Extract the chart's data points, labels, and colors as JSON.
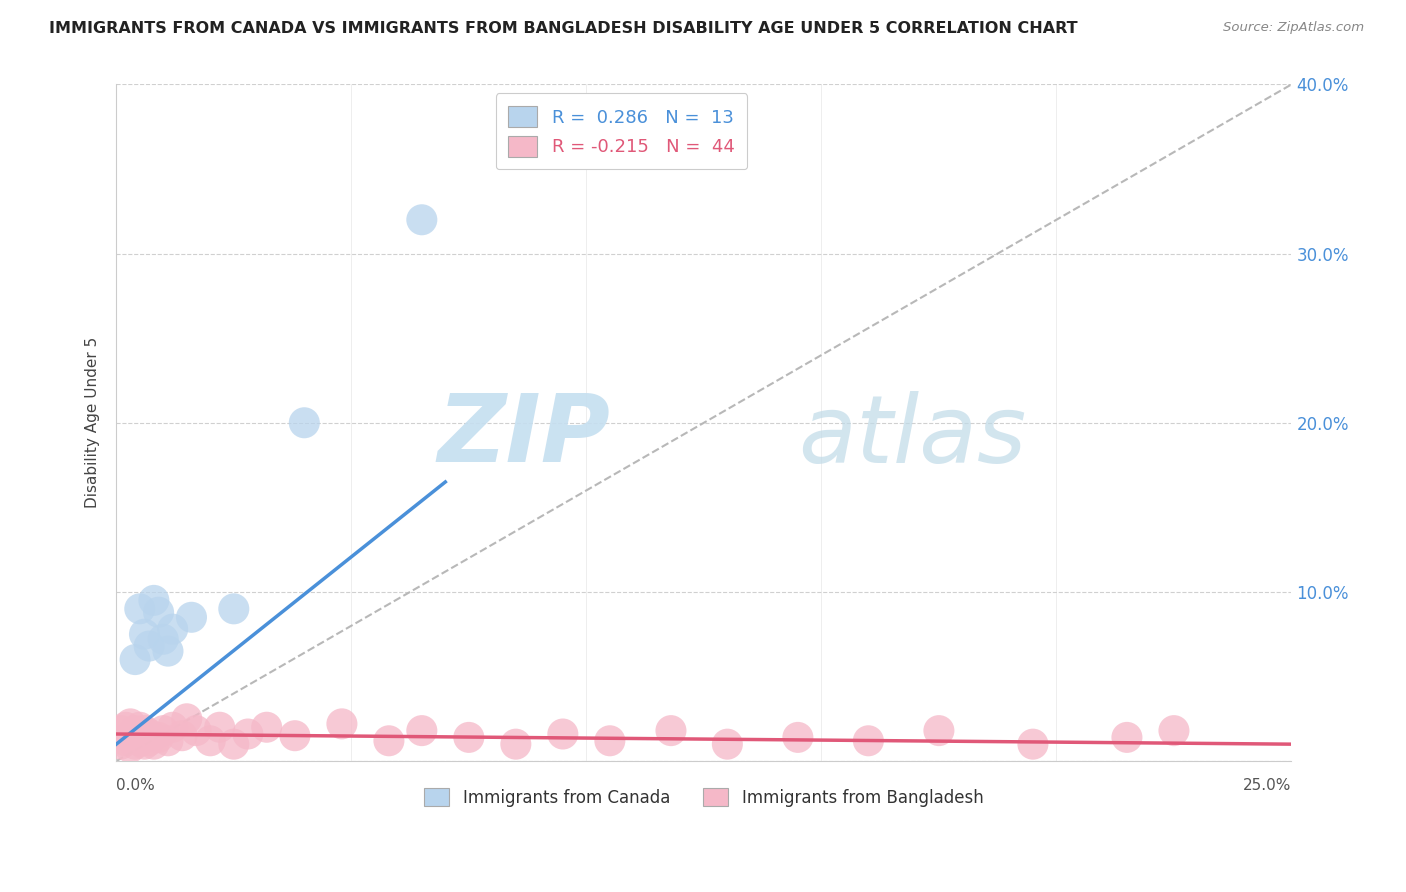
{
  "title": "IMMIGRANTS FROM CANADA VS IMMIGRANTS FROM BANGLADESH DISABILITY AGE UNDER 5 CORRELATION CHART",
  "source": "Source: ZipAtlas.com",
  "ylabel": "Disability Age Under 5",
  "xlim": [
    0.0,
    0.25
  ],
  "ylim": [
    0.0,
    0.4
  ],
  "yticks": [
    0.0,
    0.1,
    0.2,
    0.3,
    0.4
  ],
  "ytick_labels": [
    "",
    "10.0%",
    "20.0%",
    "30.0%",
    "40.0%"
  ],
  "xtick_vals": [
    0.0,
    0.05,
    0.1,
    0.15,
    0.2,
    0.25
  ],
  "r_canada": "0.286",
  "n_canada": "13",
  "r_bangladesh": "-0.215",
  "n_bangladesh": "44",
  "canada_color": "#b8d4ed",
  "canada_line_color": "#4a90d9",
  "bangladesh_color": "#f5b8c8",
  "bangladesh_line_color": "#e05878",
  "dashed_line_color": "#b8b8b8",
  "watermark_zip_color": "#c5dff0",
  "watermark_atlas_color": "#c0dae8",
  "canada_x": [
    0.004,
    0.005,
    0.006,
    0.007,
    0.008,
    0.009,
    0.01,
    0.011,
    0.012,
    0.016,
    0.025,
    0.04,
    0.065
  ],
  "canada_y": [
    0.06,
    0.09,
    0.075,
    0.068,
    0.095,
    0.088,
    0.072,
    0.065,
    0.078,
    0.085,
    0.09,
    0.2,
    0.32
  ],
  "bangladesh_x": [
    0.001,
    0.001,
    0.002,
    0.002,
    0.003,
    0.003,
    0.003,
    0.004,
    0.004,
    0.005,
    0.005,
    0.006,
    0.006,
    0.007,
    0.007,
    0.008,
    0.009,
    0.01,
    0.011,
    0.012,
    0.014,
    0.015,
    0.017,
    0.02,
    0.022,
    0.025,
    0.028,
    0.032,
    0.038,
    0.048,
    0.058,
    0.065,
    0.075,
    0.085,
    0.095,
    0.105,
    0.118,
    0.13,
    0.145,
    0.16,
    0.175,
    0.195,
    0.215,
    0.225
  ],
  "bangladesh_y": [
    0.01,
    0.018,
    0.012,
    0.02,
    0.008,
    0.015,
    0.022,
    0.01,
    0.018,
    0.012,
    0.02,
    0.01,
    0.018,
    0.012,
    0.016,
    0.01,
    0.014,
    0.018,
    0.012,
    0.02,
    0.015,
    0.025,
    0.018,
    0.012,
    0.02,
    0.01,
    0.016,
    0.02,
    0.015,
    0.022,
    0.012,
    0.018,
    0.014,
    0.01,
    0.016,
    0.012,
    0.018,
    0.01,
    0.014,
    0.012,
    0.018,
    0.01,
    0.014,
    0.018
  ],
  "canada_trend_x": [
    0.0,
    0.07
  ],
  "canada_trend_y": [
    0.01,
    0.165
  ],
  "bangladesh_trend_x": [
    0.0,
    0.25
  ],
  "bangladesh_trend_y": [
    0.016,
    0.01
  ],
  "dashed_trend_x": [
    0.0,
    0.25
  ],
  "dashed_trend_y": [
    0.0,
    0.4
  ]
}
